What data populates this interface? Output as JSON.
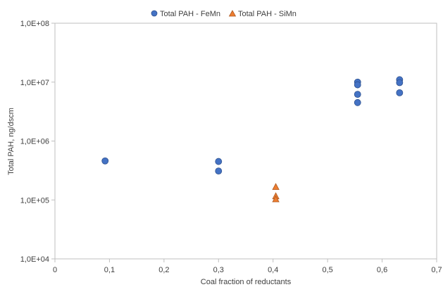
{
  "chart_data": {
    "type": "scatter",
    "title": "",
    "xlabel": "Coal fraction of reductants",
    "ylabel": "Total PAH, ng/dscm",
    "xlim": [
      0,
      0.7
    ],
    "ylim": [
      10000,
      100000000
    ],
    "yscale": "log",
    "x_ticks": [
      "0",
      "0,1",
      "0,2",
      "0,3",
      "0,4",
      "0,5",
      "0,6",
      "0,7"
    ],
    "x_tick_values": [
      0,
      0.1,
      0.2,
      0.3,
      0.4,
      0.5,
      0.6,
      0.7
    ],
    "y_ticks": [
      "1,0E+04",
      "1,0E+05",
      "1,0E+06",
      "1,0E+07",
      "1,0E+08"
    ],
    "y_tick_values": [
      10000,
      100000,
      1000000,
      10000000,
      100000000
    ],
    "grid": false,
    "legend": "top",
    "series": [
      {
        "name": "Total PAH - FeMn",
        "marker": "circle",
        "color": "#4472C4",
        "edge_color": "#2F528F",
        "points": [
          {
            "x": 0.092,
            "y": 460000
          },
          {
            "x": 0.3,
            "y": 450000
          },
          {
            "x": 0.3,
            "y": 310000
          },
          {
            "x": 0.555,
            "y": 10000000
          },
          {
            "x": 0.555,
            "y": 9000000
          },
          {
            "x": 0.555,
            "y": 6200000
          },
          {
            "x": 0.555,
            "y": 4500000
          },
          {
            "x": 0.632,
            "y": 11000000
          },
          {
            "x": 0.632,
            "y": 9800000
          },
          {
            "x": 0.632,
            "y": 6600000
          }
        ]
      },
      {
        "name": "Total PAH - SiMn",
        "marker": "triangle",
        "color": "#ED7D31",
        "edge_color": "#AE5A21",
        "points": [
          {
            "x": 0.405,
            "y": 165000
          },
          {
            "x": 0.405,
            "y": 115000
          },
          {
            "x": 0.405,
            "y": 102000
          }
        ]
      }
    ]
  },
  "colors": {
    "axis": "#bfbfbf",
    "text": "#404040"
  }
}
